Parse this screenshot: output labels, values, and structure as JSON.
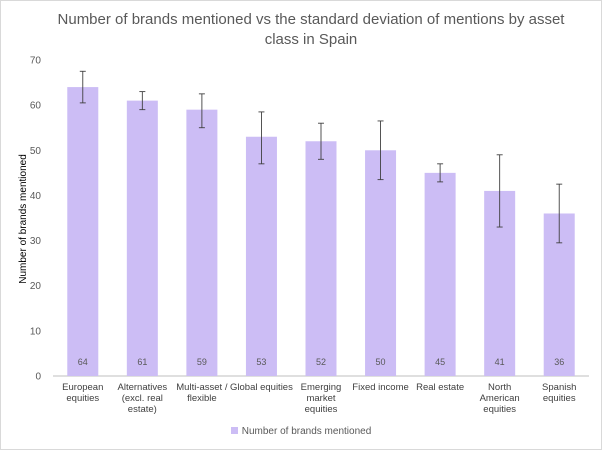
{
  "colors": {
    "bar": "#ccbdf5",
    "error_bar": "#404040",
    "axis": "#bfbfbf",
    "text": "#595959"
  },
  "chart_data": {
    "type": "bar",
    "title": "Number of brands mentioned vs the standard deviation of mentions by asset class in Spain",
    "xlabel": "",
    "ylabel": "Number of brands mentioned",
    "ylim": [
      0,
      70
    ],
    "yticks": [
      0,
      10,
      20,
      30,
      40,
      50,
      60,
      70
    ],
    "grid": false,
    "legend_position": "bottom",
    "categories": [
      [
        "European",
        "equities"
      ],
      [
        "Alternatives",
        "(excl. real",
        "estate)"
      ],
      [
        "Multi-asset /",
        "flexible"
      ],
      [
        "Global equities"
      ],
      [
        "Emerging",
        "market",
        "equities"
      ],
      [
        "Fixed income"
      ],
      [
        "Real estate"
      ],
      [
        "North",
        "American",
        "equities"
      ],
      [
        "Spanish",
        "equities"
      ]
    ],
    "series": [
      {
        "name": "Number of brands mentioned",
        "values": [
          64,
          61,
          59,
          53,
          52,
          50,
          45,
          41,
          36
        ],
        "error_low": [
          60.5,
          59,
          55,
          47,
          48,
          43.5,
          43,
          33,
          29.5
        ],
        "error_high": [
          67.5,
          63,
          62.5,
          58.5,
          56,
          56.5,
          47,
          49,
          42.5
        ]
      }
    ]
  }
}
